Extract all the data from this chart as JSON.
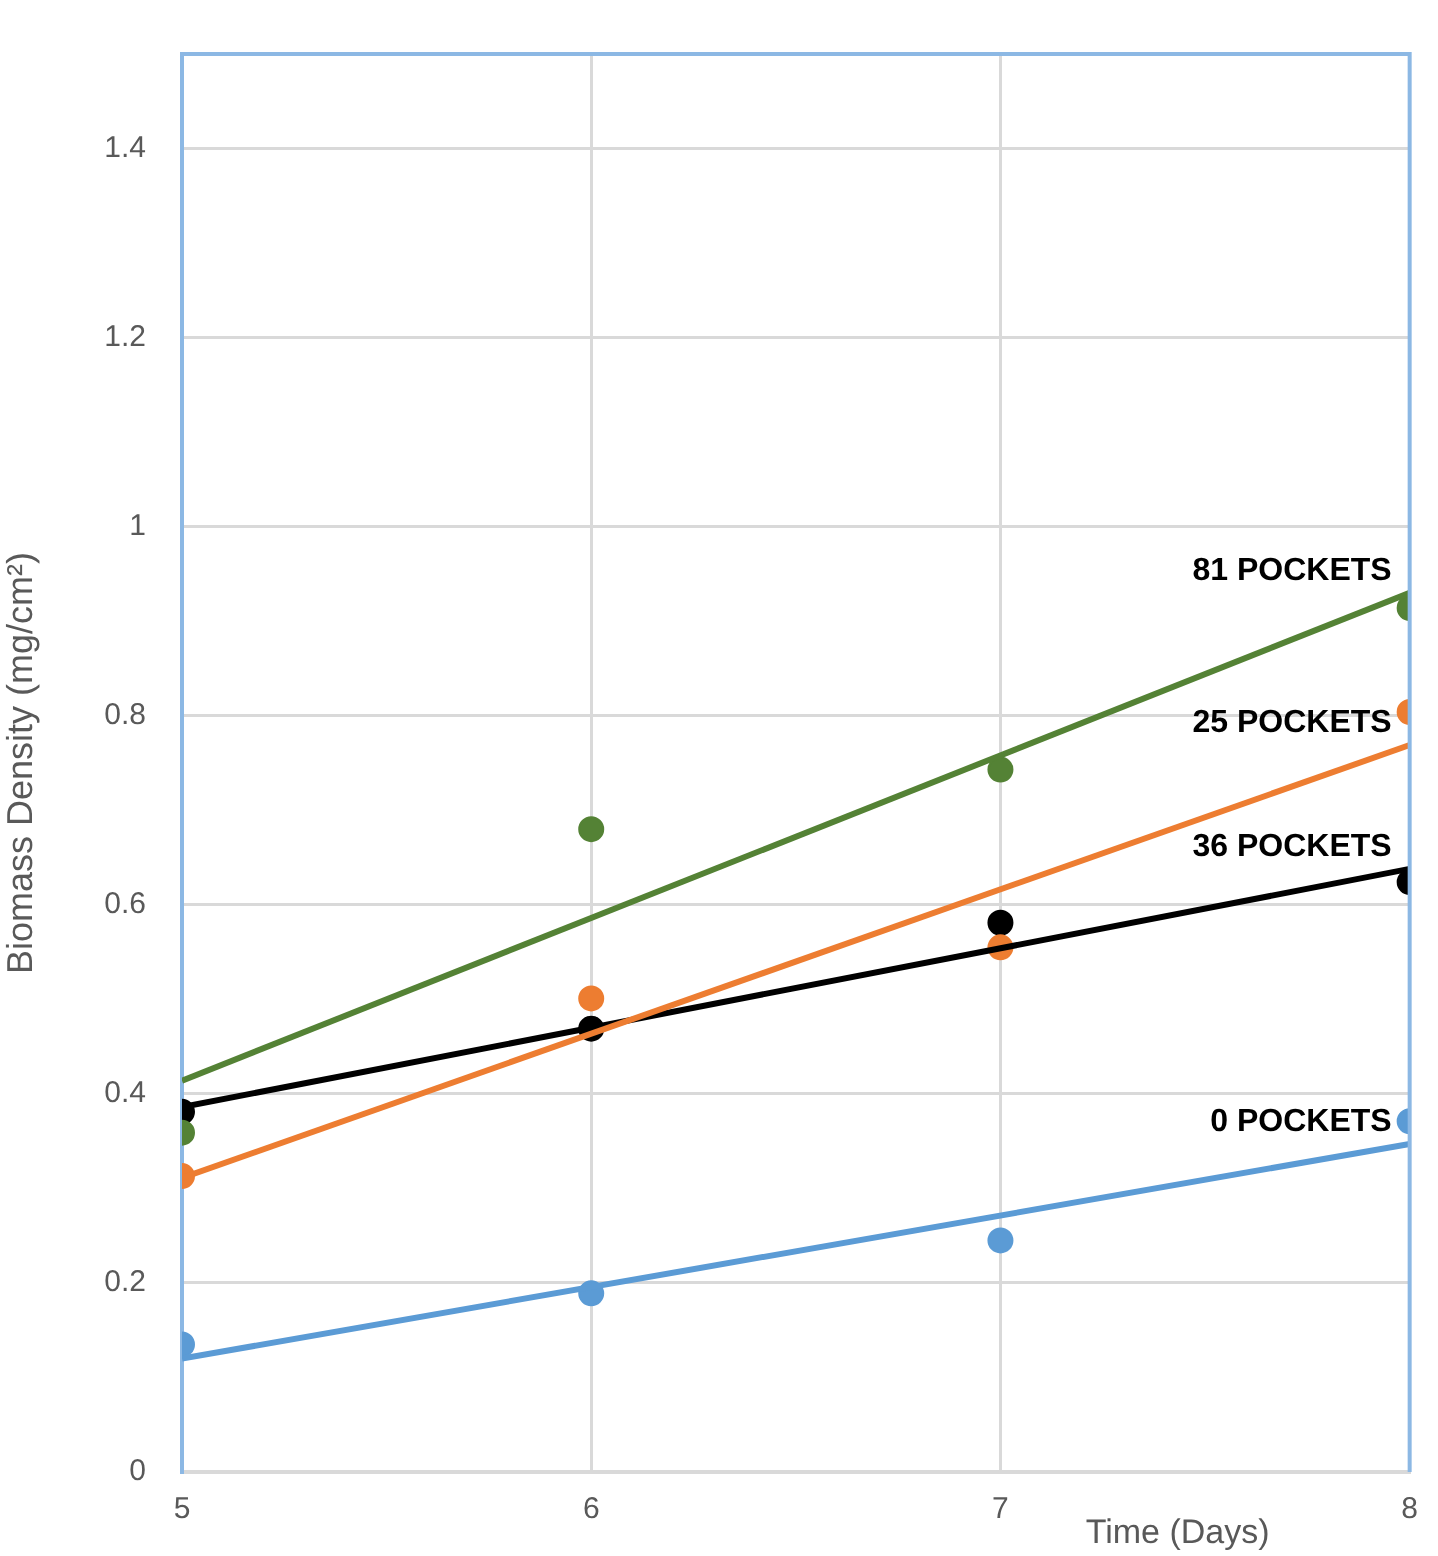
{
  "chart_data": {
    "type": "scatter",
    "xlabel": "Time (Days)",
    "ylabel": "Biomass Density (mg/cm²)",
    "xlim": [
      5,
      8
    ],
    "xticks": [
      5,
      6,
      7,
      8
    ],
    "ylim": [
      0,
      1.5
    ],
    "yticks": [
      0,
      0.2,
      0.4,
      0.6,
      0.8,
      1,
      1.2,
      1.4
    ],
    "grid": true,
    "legend": false,
    "marker": "circle",
    "series": [
      {
        "type": "line",
        "name": "0 POCKETS",
        "color": "#5b9bd5",
        "x": [
          5,
          8
        ],
        "values": [
          0.12,
          0.347
        ],
        "marker": "none"
      },
      {
        "type": "line",
        "name": "25 POCKETS",
        "color": "#ed7d31",
        "x": [
          5,
          8
        ],
        "values": [
          0.311,
          0.769
        ],
        "marker": "none"
      },
      {
        "type": "line",
        "name": "81 POCKETS",
        "color": "#548235",
        "x": [
          5,
          8
        ],
        "values": [
          0.414,
          0.93
        ],
        "marker": "none"
      },
      {
        "type": "line",
        "name": "36 POCKETS",
        "color": "#000000",
        "x": [
          5,
          8
        ],
        "values": [
          0.386,
          0.638
        ],
        "marker": "none"
      },
      {
        "color": "#5b9bd5",
        "x": [
          5,
          6,
          7,
          8
        ],
        "values": [
          0.135,
          0.189,
          0.245,
          0.371
        ]
      },
      {
        "color": "#ed7d31",
        "x": [
          5,
          6,
          7,
          8
        ],
        "values": [
          0.313,
          0.501,
          0.555,
          0.804
        ]
      },
      {
        "color": "#548235",
        "x": [
          5,
          6,
          7,
          8
        ],
        "values": [
          0.359,
          0.68,
          0.743,
          0.914
        ]
      },
      {
        "color": "#000000",
        "x": [
          5,
          6,
          7,
          8
        ],
        "values": [
          0.381,
          0.469,
          0.581,
          0.624
        ]
      }
    ]
  }
}
